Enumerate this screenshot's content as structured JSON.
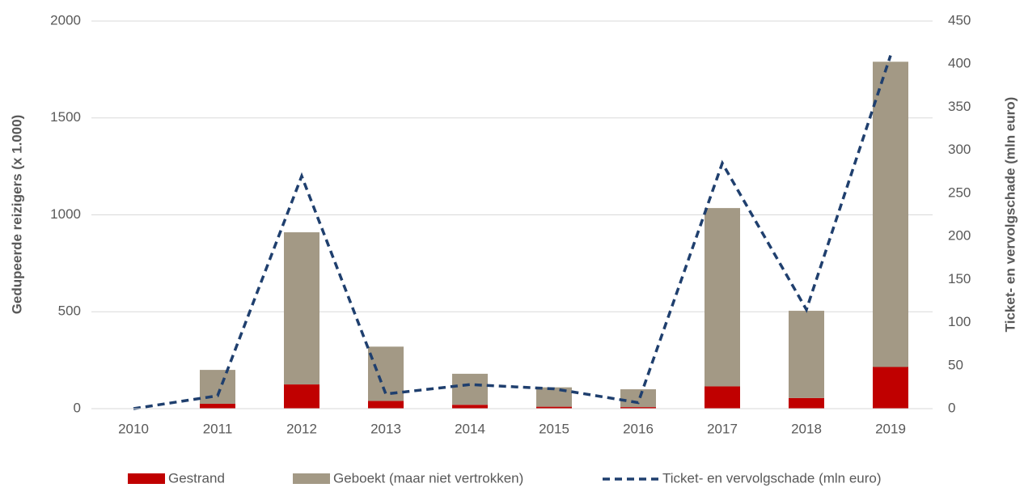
{
  "chart_data": {
    "type": "bar",
    "categories": [
      "2010",
      "2011",
      "2012",
      "2013",
      "2014",
      "2015",
      "2016",
      "2017",
      "2018",
      "2019"
    ],
    "series": [
      {
        "name": "Gestrand",
        "color": "#c00000",
        "values": [
          0,
          25,
          125,
          40,
          20,
          10,
          8,
          115,
          55,
          215
        ]
      },
      {
        "name": "Geboekt (maar niet vertrokken)",
        "color": "#a39985",
        "values": [
          0,
          175,
          785,
          280,
          160,
          100,
          92,
          920,
          450,
          1575
        ]
      },
      {
        "name": "Ticket- en vervolgschade (mln euro)",
        "color": "#1f3f6e",
        "type": "line",
        "axis": "y2",
        "dashed": true,
        "values": [
          0,
          15,
          270,
          17,
          28,
          23,
          7,
          285,
          115,
          410
        ]
      }
    ],
    "stacked": true,
    "ylabel": "Gedupeerde reizigers (x 1.000)",
    "y2label": "Ticket- en vervolgschade (mln euro)",
    "ylim": [
      0,
      2000
    ],
    "yticks": [
      0,
      500,
      1000,
      1500,
      2000
    ],
    "y2lim": [
      0,
      450
    ],
    "y2ticks": [
      0,
      50,
      100,
      150,
      200,
      250,
      300,
      350,
      400,
      450
    ],
    "grid": true,
    "legend": "bottom"
  }
}
